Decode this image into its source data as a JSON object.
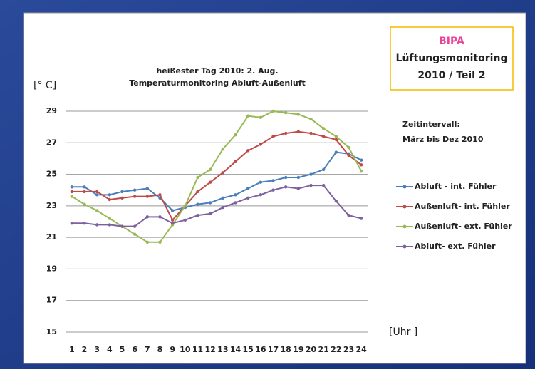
{
  "chart_data": {
    "type": "line",
    "title": "heißester Tag 2010: 2. Aug.",
    "subtitle": "Temperaturmonitoring Abluft-Außenluft",
    "y_label": "[° C]",
    "x_label": "[Uhr ]",
    "info_box": [
      "BIPA",
      "Lüftungsmonitoring",
      "2010 / Teil 2"
    ],
    "annotations": [
      "Zeitintervall:",
      "März bis Dez 2010"
    ],
    "categories": [
      "1",
      "2",
      "3",
      "4",
      "5",
      "6",
      "7",
      "8",
      "9",
      "10",
      "11",
      "12",
      "13",
      "14",
      "15",
      "16",
      "17",
      "18",
      "19",
      "20",
      "21",
      "22",
      "23",
      "24"
    ],
    "series": [
      {
        "name": "Abluft - int. Fühler",
        "color": "#4a7ebb",
        "values": [
          24.2,
          24.2,
          23.7,
          23.7,
          23.9,
          24.0,
          24.1,
          23.5,
          22.7,
          22.9,
          23.1,
          23.2,
          23.5,
          23.7,
          24.1,
          24.5,
          24.6,
          24.8,
          24.8,
          25.0,
          25.3,
          26.4,
          26.3,
          25.9
        ]
      },
      {
        "name": "Außenluft- int. Fühler",
        "color": "#be4b48",
        "values": [
          23.9,
          23.9,
          23.9,
          23.4,
          23.5,
          23.6,
          23.6,
          23.7,
          22.1,
          23.0,
          23.9,
          24.5,
          25.1,
          25.8,
          26.5,
          26.9,
          27.4,
          27.6,
          27.7,
          27.6,
          27.4,
          27.2,
          26.2,
          25.6
        ]
      },
      {
        "name": "Außenluft- ext. Fühler",
        "color": "#98b954",
        "values": [
          23.6,
          23.1,
          22.7,
          22.2,
          21.7,
          21.2,
          20.7,
          20.7,
          21.8,
          23.0,
          24.8,
          25.3,
          26.6,
          27.5,
          28.7,
          28.6,
          29.0,
          28.9,
          28.8,
          28.5,
          27.9,
          27.4,
          26.7,
          25.2
        ]
      },
      {
        "name": "Abluft- ext. Fühler",
        "color": "#7d60a0",
        "values": [
          21.9,
          21.9,
          21.8,
          21.8,
          21.7,
          21.7,
          22.3,
          22.3,
          21.9,
          22.1,
          22.4,
          22.5,
          22.9,
          23.2,
          23.5,
          23.7,
          24.0,
          24.2,
          24.1,
          24.3,
          24.3,
          23.3,
          22.4,
          22.2
        ]
      }
    ],
    "ylim": [
      15,
      29
    ],
    "yticks": [
      15,
      17,
      19,
      21,
      23,
      25,
      27,
      29
    ],
    "grid": true,
    "legend": "right"
  }
}
